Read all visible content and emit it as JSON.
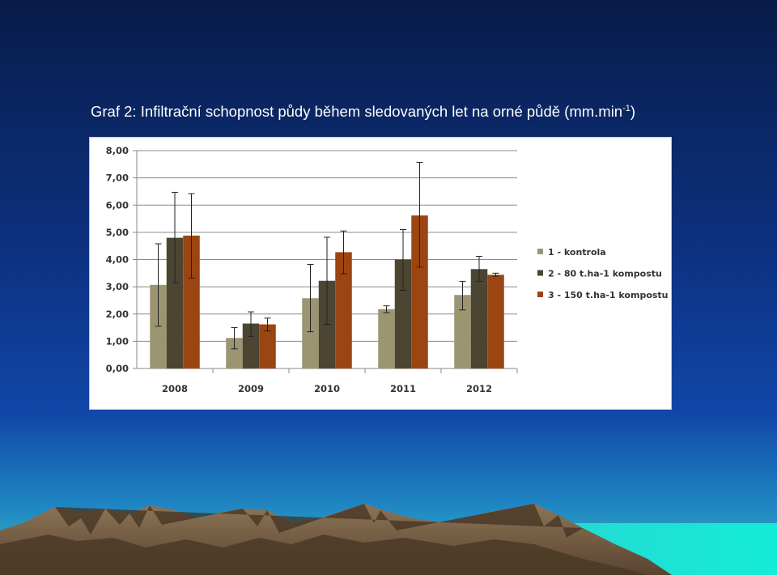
{
  "slide": {
    "title_main": "Graf 2: Infiltrační schopnost půdy během sledovaných let na orné půdě (mm.min",
    "title_sup": "-1",
    "title_close": ")"
  },
  "colors": {
    "sky_top": "#0a1f50",
    "sky_mid": "#0f3a8e",
    "sky_bottom": "#2aa7c4",
    "sea": "#15e6d8",
    "mountain": "#7a6046",
    "mountain_dark": "#4c3a27",
    "series_1": "#9b9571",
    "series_2": "#4c4531",
    "series_3": "#9b4512"
  },
  "chart_data": {
    "type": "bar",
    "categories": [
      "2008",
      "2009",
      "2010",
      "2011",
      "2012"
    ],
    "ylim": [
      0,
      8
    ],
    "yticks": [
      "0,00",
      "1,00",
      "2,00",
      "3,00",
      "4,00",
      "5,00",
      "6,00",
      "7,00",
      "8,00"
    ],
    "grid": true,
    "legend_position": "right",
    "series": [
      {
        "name": "1 - kontrola",
        "color": "#9b9571",
        "values": [
          3.07,
          1.12,
          2.58,
          2.18,
          2.7
        ],
        "err_low": [
          1.55,
          0.72,
          1.35,
          2.05,
          2.15
        ],
        "err_high": [
          4.58,
          1.5,
          3.82,
          2.3,
          3.2
        ]
      },
      {
        "name": "2 - 80 t.ha-1 kompostu",
        "color": "#4c4531",
        "values": [
          4.8,
          1.65,
          3.22,
          4.0,
          3.65
        ],
        "err_low": [
          3.15,
          1.18,
          1.62,
          2.87,
          3.2
        ],
        "err_high": [
          6.47,
          2.08,
          4.82,
          5.1,
          4.12
        ]
      },
      {
        "name": "3 - 150 t.ha-1 kompostu",
        "color": "#9b4512",
        "values": [
          4.88,
          1.62,
          4.27,
          5.62,
          3.44
        ],
        "err_low": [
          3.32,
          1.38,
          3.48,
          3.72,
          3.39
        ],
        "err_high": [
          6.42,
          1.85,
          5.05,
          7.57,
          3.5
        ]
      }
    ]
  }
}
